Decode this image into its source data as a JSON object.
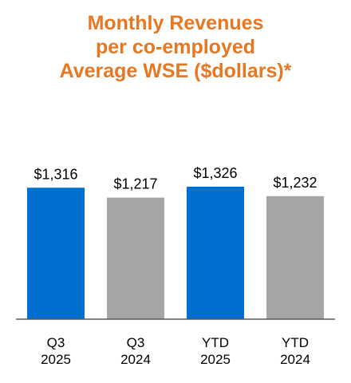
{
  "chart_data": {
    "type": "bar",
    "title_lines": [
      "Monthly Revenues",
      "per co-employed",
      "Average WSE ($dollars)*"
    ],
    "categories": [
      [
        "Q3",
        "2025"
      ],
      [
        "Q3",
        "2024"
      ],
      [
        "YTD",
        "2025"
      ],
      [
        "YTD",
        "2024"
      ]
    ],
    "values": [
      1316,
      1217,
      1326,
      1232
    ],
    "value_labels": [
      "$1,316",
      "$1,217",
      "$1,326",
      "$1,232"
    ],
    "bar_colors": [
      "#0070D0",
      "#A6A6A6",
      "#0070D0",
      "#A6A6A6"
    ],
    "title_color": "#E87722",
    "ylim": [
      0,
      1400
    ],
    "grid": false,
    "legend": "none"
  }
}
